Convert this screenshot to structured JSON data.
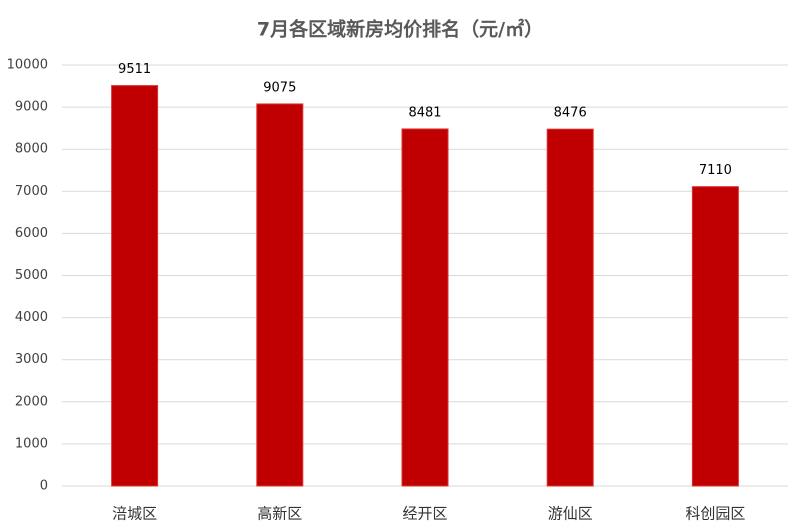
{
  "chart_data": {
    "type": "bar",
    "title": "7月各区域新房均价排名（元/㎡）",
    "categories": [
      "涪城区",
      "高新区",
      "经开区",
      "游仙区",
      "科创园区"
    ],
    "values": [
      9511,
      9075,
      8481,
      8476,
      7110
    ],
    "color": "#c00000",
    "ylim": [
      0,
      10000
    ],
    "yticks": [
      0,
      1000,
      2000,
      3000,
      4000,
      5000,
      6000,
      7000,
      8000,
      9000,
      10000
    ],
    "grid": true
  }
}
